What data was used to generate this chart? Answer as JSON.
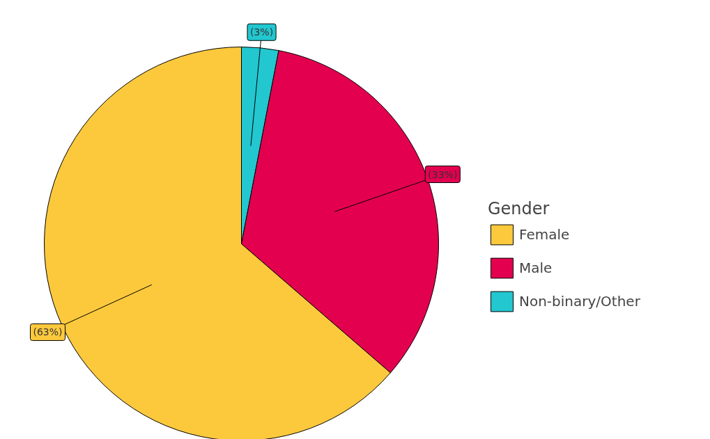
{
  "chart_data": {
    "type": "pie",
    "categories": [
      "Female",
      "Male",
      "Non-binary/Other"
    ],
    "values": [
      63,
      33,
      3
    ],
    "colors": [
      "#fcc93d",
      "#e3004f",
      "#22c7d0"
    ],
    "value_labels": [
      "(63%)",
      "(33%)",
      "(3%)"
    ],
    "legend_title": "Gender",
    "legend": "right"
  }
}
